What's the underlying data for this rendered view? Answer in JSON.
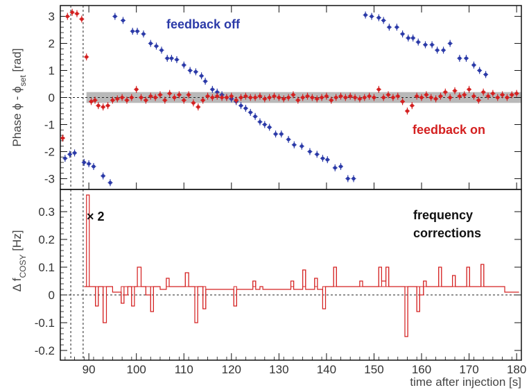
{
  "chart_data": [
    {
      "type": "scatter",
      "ylabel_parts": [
        "Phase ",
        "ϕ",
        " - ",
        "ϕ",
        "set",
        " [rad]"
      ],
      "ylim": [
        -3.4,
        3.4
      ],
      "xlim": [
        84,
        181
      ],
      "yticks": [
        -3,
        -2,
        -1,
        0,
        1,
        2,
        3
      ],
      "band": [
        -0.2,
        0.2
      ],
      "annotations": [
        "feedback off",
        "feedback on"
      ],
      "colors": {
        "off": "#2b3aa8",
        "on": "#d42020",
        "band": "#b9b9b9"
      },
      "series": [
        {
          "name": "feedback off",
          "points": [
            [
              85,
              -2.25
            ],
            [
              86,
              -2.1
            ],
            [
              87,
              -2.05
            ],
            [
              89,
              -2.4
            ],
            [
              90,
              -2.45
            ],
            [
              91,
              -2.55
            ],
            [
              93,
              -2.9
            ],
            [
              94.5,
              -3.15
            ],
            [
              95.5,
              3.0
            ],
            [
              97.2,
              2.85
            ],
            [
              99.2,
              2.45
            ],
            [
              100.2,
              2.45
            ],
            [
              101.5,
              2.35
            ],
            [
              103,
              2.0
            ],
            [
              104.2,
              1.9
            ],
            [
              105.3,
              1.75
            ],
            [
              106.5,
              1.45
            ],
            [
              107.4,
              1.45
            ],
            [
              108.5,
              1.4
            ],
            [
              110,
              1.2
            ],
            [
              111.3,
              1.0
            ],
            [
              112.5,
              0.95
            ],
            [
              113.7,
              0.8
            ],
            [
              114.5,
              0.6
            ],
            [
              116,
              0.3
            ],
            [
              117,
              0.2
            ],
            [
              118,
              0.1
            ],
            [
              119,
              0.0
            ],
            [
              120,
              -0.05
            ],
            [
              121,
              -0.15
            ],
            [
              122,
              -0.3
            ],
            [
              123,
              -0.4
            ],
            [
              124,
              -0.55
            ],
            [
              125,
              -0.7
            ],
            [
              126,
              -0.9
            ],
            [
              127,
              -1.0
            ],
            [
              128,
              -1.1
            ],
            [
              129.3,
              -1.35
            ],
            [
              130.5,
              -1.35
            ],
            [
              132,
              -1.55
            ],
            [
              133.2,
              -1.75
            ],
            [
              134.8,
              -1.8
            ],
            [
              136.5,
              -2.0
            ],
            [
              138,
              -2.1
            ],
            [
              139.2,
              -2.25
            ],
            [
              140.2,
              -2.3
            ],
            [
              141.8,
              -2.6
            ],
            [
              143,
              -2.55
            ],
            [
              144.5,
              -3.0
            ],
            [
              145.7,
              -3.0
            ],
            [
              148.2,
              3.05
            ],
            [
              149.5,
              3.0
            ],
            [
              151,
              2.95
            ],
            [
              152,
              2.85
            ],
            [
              153.2,
              2.6
            ],
            [
              154.8,
              2.6
            ],
            [
              156,
              2.35
            ],
            [
              157.2,
              2.2
            ],
            [
              158.2,
              2.2
            ],
            [
              159.3,
              2.05
            ],
            [
              160.8,
              1.95
            ],
            [
              162.2,
              1.95
            ],
            [
              163.3,
              1.75
            ],
            [
              164.6,
              1.75
            ],
            [
              166,
              2.0
            ],
            [
              168,
              1.45
            ],
            [
              169.4,
              1.45
            ],
            [
              171,
              1.2
            ],
            [
              172.2,
              1.0
            ],
            [
              173.5,
              0.85
            ]
          ]
        },
        {
          "name": "feedback on",
          "points": [
            [
              84.5,
              -1.5
            ],
            [
              85.5,
              3.0
            ],
            [
              86.5,
              3.15
            ],
            [
              87.5,
              3.1
            ],
            [
              88.5,
              2.9
            ],
            [
              89.5,
              1.5
            ],
            [
              90.5,
              -0.15
            ],
            [
              91.3,
              -0.1
            ],
            [
              92,
              -0.3
            ],
            [
              93,
              -0.35
            ],
            [
              94,
              -0.3
            ],
            [
              95,
              -0.1
            ],
            [
              96,
              -0.05
            ],
            [
              97,
              0.0
            ],
            [
              98,
              -0.1
            ],
            [
              99,
              0.0
            ],
            [
              100,
              0.3
            ],
            [
              101,
              0.0
            ],
            [
              102,
              -0.1
            ],
            [
              103,
              0.05
            ],
            [
              104,
              0.0
            ],
            [
              105,
              0.1
            ],
            [
              106,
              -0.1
            ],
            [
              107,
              0.15
            ],
            [
              108,
              0.0
            ],
            [
              109,
              0.1
            ],
            [
              110,
              -0.1
            ],
            [
              111,
              0.1
            ],
            [
              112,
              -0.2
            ],
            [
              113,
              -0.35
            ],
            [
              114,
              -0.1
            ],
            [
              115,
              0.05
            ],
            [
              116,
              0.0
            ],
            [
              117,
              0.05
            ],
            [
              118,
              0.0
            ],
            [
              119,
              0.0
            ],
            [
              120,
              0.05
            ],
            [
              121,
              -0.1
            ],
            [
              122,
              0.0
            ],
            [
              123,
              0.05
            ],
            [
              124,
              0.0
            ],
            [
              125,
              0.0
            ],
            [
              126,
              0.05
            ],
            [
              127,
              -0.05
            ],
            [
              128,
              0.0
            ],
            [
              129,
              0.05
            ],
            [
              130,
              0.0
            ],
            [
              131,
              -0.05
            ],
            [
              132,
              0.0
            ],
            [
              133,
              0.1
            ],
            [
              134,
              -0.1
            ],
            [
              135,
              0.0
            ],
            [
              136,
              0.05
            ],
            [
              137,
              0.0
            ],
            [
              138,
              -0.05
            ],
            [
              139,
              0.0
            ],
            [
              140,
              0.05
            ],
            [
              141,
              -0.1
            ],
            [
              142,
              0.0
            ],
            [
              143,
              0.05
            ],
            [
              144,
              0.0
            ],
            [
              145,
              0.05
            ],
            [
              146,
              0.0
            ],
            [
              147,
              -0.05
            ],
            [
              148,
              0.0
            ],
            [
              149,
              0.05
            ],
            [
              150,
              0.0
            ],
            [
              151,
              0.3
            ],
            [
              152,
              0.0
            ],
            [
              153,
              0.1
            ],
            [
              154,
              0.0
            ],
            [
              155,
              0.05
            ],
            [
              156,
              -0.15
            ],
            [
              157,
              -0.5
            ],
            [
              158,
              -0.3
            ],
            [
              159,
              0.05
            ],
            [
              160,
              0.0
            ],
            [
              161,
              0.1
            ],
            [
              162,
              0.0
            ],
            [
              163,
              -0.05
            ],
            [
              164,
              0.05
            ],
            [
              165,
              0.2
            ],
            [
              166,
              0.0
            ],
            [
              167,
              0.25
            ],
            [
              168,
              0.05
            ],
            [
              169,
              0.1
            ],
            [
              170,
              0.3
            ],
            [
              171,
              0.05
            ],
            [
              172,
              -0.1
            ],
            [
              173,
              0.2
            ],
            [
              174,
              0.05
            ],
            [
              175,
              0.15
            ],
            [
              176,
              0.0
            ],
            [
              177,
              0.1
            ],
            [
              178,
              0.0
            ],
            [
              179,
              0.1
            ],
            [
              180,
              0.15
            ]
          ]
        }
      ]
    },
    {
      "type": "line",
      "ylabel_parts": [
        "Δ ",
        "f",
        "COSY",
        " [Hz]"
      ],
      "xlabel": "time after injection [s]",
      "ylim": [
        -0.235,
        0.38
      ],
      "xlim": [
        84,
        181
      ],
      "yticks": [
        -0.2,
        -0.1,
        0,
        0.1,
        0.2,
        0.3
      ],
      "xticks": [
        90,
        100,
        110,
        120,
        130,
        140,
        150,
        160,
        170,
        180
      ],
      "annotations": [
        "× 2",
        "frequency",
        "corrections"
      ],
      "colors": {
        "line": "#d42020"
      },
      "spike": {
        "x": 89.8,
        "value": 0.36
      },
      "steps": [
        [
          89,
          0.03
        ],
        [
          90.4,
          0.03
        ],
        [
          91.4,
          -0.04
        ],
        [
          92,
          0.03
        ],
        [
          93,
          -0.1
        ],
        [
          93.7,
          0.03
        ],
        [
          95,
          0.01
        ],
        [
          96.8,
          -0.03
        ],
        [
          97.4,
          0.0
        ],
        [
          98.2,
          0.03
        ],
        [
          99,
          -0.04
        ],
        [
          99.6,
          0.03
        ],
        [
          100.2,
          0.1
        ],
        [
          101,
          0.03
        ],
        [
          102,
          0.0
        ],
        [
          103,
          -0.06
        ],
        [
          103.6,
          0.03
        ],
        [
          105,
          0.02
        ],
        [
          106.3,
          0.06
        ],
        [
          106.9,
          0.03
        ],
        [
          109,
          0.03
        ],
        [
          110.3,
          0.08
        ],
        [
          111,
          0.03
        ],
        [
          112.3,
          -0.1
        ],
        [
          112.9,
          0.03
        ],
        [
          114,
          -0.05
        ],
        [
          114.6,
          0.02
        ],
        [
          116.5,
          0.02
        ],
        [
          118.5,
          0.02
        ],
        [
          120.5,
          -0.04
        ],
        [
          121.1,
          0.02
        ],
        [
          123,
          0.02
        ],
        [
          124.5,
          0.05
        ],
        [
          125.1,
          0.02
        ],
        [
          126,
          0.03
        ],
        [
          126.6,
          0.02
        ],
        [
          130,
          0.02
        ],
        [
          132.5,
          0.05
        ],
        [
          133.1,
          0.02
        ],
        [
          135,
          0.09
        ],
        [
          135.6,
          0.02
        ],
        [
          137.5,
          0.06
        ],
        [
          138.1,
          0.02
        ],
        [
          139.2,
          -0.05
        ],
        [
          139.8,
          0.03
        ],
        [
          141.5,
          0.1
        ],
        [
          142.1,
          0.03
        ],
        [
          146,
          0.03
        ],
        [
          147,
          0.05
        ],
        [
          147.6,
          0.03
        ],
        [
          149.5,
          0.03
        ],
        [
          151,
          0.1
        ],
        [
          151.6,
          0.05
        ],
        [
          152.5,
          0.1
        ],
        [
          153.1,
          0.03
        ],
        [
          156.5,
          -0.15
        ],
        [
          157.1,
          0.03
        ],
        [
          159,
          -0.06
        ],
        [
          159.6,
          0.0
        ],
        [
          160.4,
          0.05
        ],
        [
          161,
          0.03
        ],
        [
          163.6,
          0.1
        ],
        [
          164.2,
          0.03
        ],
        [
          166.5,
          0.07
        ],
        [
          167.1,
          0.03
        ],
        [
          169.5,
          0.1
        ],
        [
          170.1,
          0.03
        ],
        [
          171.5,
          0.03
        ],
        [
          172.5,
          0.11
        ],
        [
          173.1,
          0.03
        ],
        [
          175.5,
          0.03
        ],
        [
          177.5,
          0.01
        ],
        [
          180.5,
          0.01
        ]
      ]
    }
  ]
}
